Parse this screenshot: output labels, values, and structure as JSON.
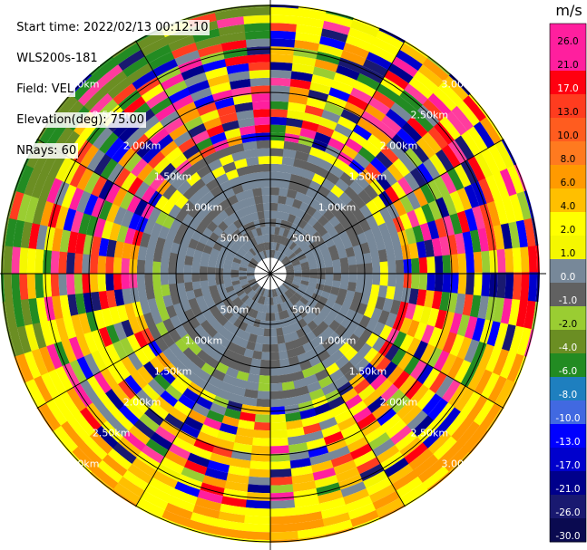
{
  "info": {
    "start_time": "Start time: 2022/02/13 00:12:10",
    "instrument": "WLS200s-181",
    "field": "Field: VEL",
    "elevation": "Elevation(deg): 75.00",
    "nrays": "NRays: 60"
  },
  "chart_data": {
    "type": "heatmap",
    "projection": "polar (PPI)",
    "field": "VEL",
    "elevation_deg": 75.0,
    "n_rays": 60,
    "range_rings": [
      "500m",
      "1.00km",
      "1.50km",
      "2.00km",
      "2.50km",
      "3.00km"
    ],
    "range_ring_values_km": [
      0.5,
      1.0,
      1.5,
      2.0,
      2.5,
      3.0
    ],
    "colorbar": {
      "unit": "m/s",
      "tick_labels": [
        "26.0",
        "21.0",
        "17.0",
        "13.0",
        "10.0",
        "8.0",
        "6.0",
        "4.0",
        "2.0",
        "1.0",
        "0.0",
        "-1.0",
        "-2.0",
        "-4.0",
        "-6.0",
        "-8.0",
        "-10.0",
        "-13.0",
        "-17.0",
        "-21.0",
        "-26.0",
        "-30.0"
      ],
      "colors": [
        "#ff1f9e",
        "#ff1f9e",
        "#ff0010",
        "#ff3c1f",
        "#ff5c1f",
        "#ff7a1f",
        "#ff9a00",
        "#ffbf00",
        "#ffff00",
        "#f5f700",
        "#778899",
        "#616161",
        "#9acd32",
        "#6b8e23",
        "#228b22",
        "#1e7fbf",
        "#4169e1",
        "#0000ff",
        "#0000cd",
        "#00008b",
        "#191970",
        "#0a0a50"
      ]
    }
  }
}
